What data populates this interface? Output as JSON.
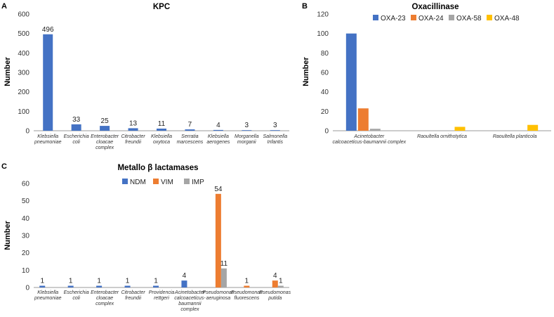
{
  "colors": {
    "blue": "#4472C4",
    "orange": "#ED7D31",
    "gray": "#A5A5A5",
    "yellow": "#FFC000",
    "axis": "#999999"
  },
  "chart_data": [
    {
      "panel": "A",
      "type": "bar",
      "title": "KPC",
      "ylabel": "Number",
      "ylim": [
        0,
        600
      ],
      "yticks": [
        0,
        100,
        200,
        300,
        400,
        500,
        600
      ],
      "categories": [
        [
          "Klebsiella",
          "pneumoniae"
        ],
        [
          "Escherichia",
          "coli"
        ],
        [
          "Enterobacter",
          "cloacae",
          "complex"
        ],
        [
          "Citrobacter",
          "freundii"
        ],
        [
          "Klebsiella",
          "oxytoca"
        ],
        [
          "Serratia",
          "marcescens"
        ],
        [
          "Klebsiella",
          "aerogenes"
        ],
        [
          "Morganella",
          "morganii"
        ],
        [
          "Salmonella",
          "Infantis"
        ]
      ],
      "series": [
        {
          "name": "KPC",
          "color": "#4472C4",
          "values": [
            496,
            33,
            25,
            13,
            11,
            7,
            4,
            3,
            3
          ],
          "labels": [
            "496",
            "33",
            "25",
            "13",
            "11",
            "7",
            "4",
            "3",
            "3"
          ]
        }
      ],
      "legend": false
    },
    {
      "panel": "B",
      "type": "bar",
      "title": "Oxacillinase",
      "ylabel": "Number",
      "ylim": [
        0,
        120
      ],
      "yticks": [
        0,
        20,
        40,
        60,
        80,
        100,
        120
      ],
      "categories": [
        [
          "Acinetobacter",
          "calcoaceticus-baumannii complex"
        ],
        [
          "Raoultella ornithotytica"
        ],
        [
          "Raoultella planticola"
        ]
      ],
      "series": [
        {
          "name": "OXA-23",
          "color": "#4472C4",
          "values": [
            100,
            0,
            0
          ],
          "labels": [
            "",
            "",
            ""
          ]
        },
        {
          "name": "OXA-24",
          "color": "#ED7D31",
          "values": [
            23,
            0,
            0
          ],
          "labels": [
            "",
            "",
            ""
          ]
        },
        {
          "name": "OXA-58",
          "color": "#A5A5A5",
          "values": [
            2,
            0,
            0
          ],
          "labels": [
            "",
            "",
            ""
          ]
        },
        {
          "name": "OXA-48",
          "color": "#FFC000",
          "values": [
            0,
            4,
            6
          ],
          "labels": [
            "",
            "",
            ""
          ]
        }
      ],
      "legend": true
    },
    {
      "panel": "C",
      "type": "bar",
      "title": "Metallo β lactamases",
      "ylabel": "Number",
      "ylim": [
        0,
        60
      ],
      "yticks": [
        0,
        10,
        20,
        30,
        40,
        50,
        60
      ],
      "categories": [
        [
          "Klebsiella",
          "pneumoniae"
        ],
        [
          "Escherichia",
          "coli"
        ],
        [
          "Enterobacter",
          "cloacae",
          "complex"
        ],
        [
          "Citrobacter",
          "freundii"
        ],
        [
          "Providencia",
          "rettgeri"
        ],
        [
          "Acinetobacter",
          "calcoaceticus-",
          "baumannii",
          "complex"
        ],
        [
          "Pseudomonas",
          "aeruginosa"
        ],
        [
          "Pseudomonas",
          "fluorescens"
        ],
        [
          "Pseudomonas",
          "putida"
        ]
      ],
      "series": [
        {
          "name": "NDM",
          "color": "#4472C4",
          "values": [
            1,
            1,
            1,
            1,
            1,
            4,
            0,
            0,
            0
          ],
          "labels": [
            "1",
            "1",
            "1",
            "1",
            "1",
            "4",
            "",
            "",
            ""
          ]
        },
        {
          "name": "VIM",
          "color": "#ED7D31",
          "values": [
            0,
            0,
            0,
            0,
            0,
            0,
            54,
            1,
            4
          ],
          "labels": [
            "",
            "",
            "",
            "",
            "",
            "",
            "54",
            "1",
            "4"
          ]
        },
        {
          "name": "IMP",
          "color": "#A5A5A5",
          "values": [
            0,
            0,
            0,
            0,
            0,
            0,
            11,
            0,
            1
          ],
          "labels": [
            "",
            "",
            "",
            "",
            "",
            "",
            "11",
            "",
            "1"
          ]
        }
      ],
      "legend": true
    }
  ]
}
